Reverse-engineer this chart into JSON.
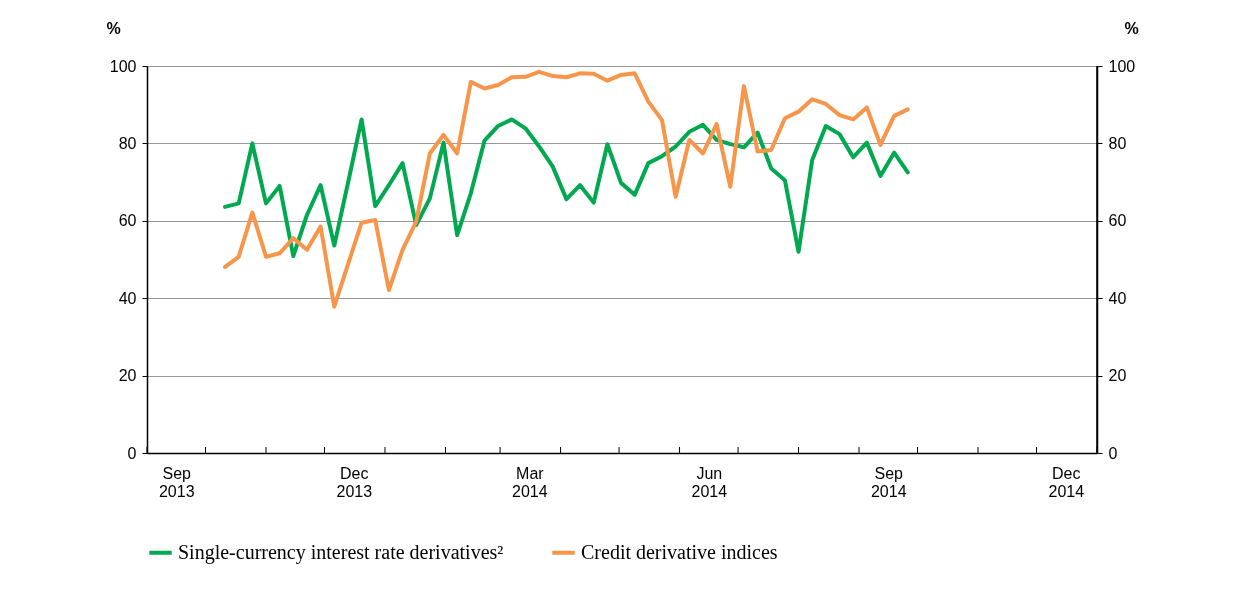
{
  "chart_data": {
    "type": "line",
    "x": [
      "2013-10-11",
      "2013-10-18",
      "2013-10-25",
      "2013-11-01",
      "2013-11-08",
      "2013-11-15",
      "2013-11-22",
      "2013-11-29",
      "2013-12-06",
      "2013-12-13",
      "2013-12-20",
      "2013-12-27",
      "2014-01-03",
      "2014-01-10",
      "2014-01-17",
      "2014-01-24",
      "2014-01-31",
      "2014-02-07",
      "2014-02-14",
      "2014-02-21",
      "2014-02-28",
      "2014-03-07",
      "2014-03-14",
      "2014-03-21",
      "2014-03-28",
      "2014-04-04",
      "2014-04-11",
      "2014-04-18",
      "2014-04-25",
      "2014-05-02",
      "2014-05-09",
      "2014-05-16",
      "2014-05-23",
      "2014-05-30",
      "2014-06-06",
      "2014-06-13",
      "2014-06-20",
      "2014-06-27",
      "2014-07-04",
      "2014-07-11",
      "2014-07-18",
      "2014-07-25",
      "2014-08-01",
      "2014-08-08",
      "2014-08-15",
      "2014-08-22",
      "2014-08-29",
      "2014-09-05",
      "2014-09-12",
      "2014-09-19",
      "2014-09-26"
    ],
    "series": [
      {
        "name": "Single-currency interest rate derivatives²",
        "color": "#00a94f",
        "values": [
          63.6,
          64.5,
          80.0,
          64.5,
          69.0,
          50.9,
          61.5,
          69.2,
          53.6,
          69.7,
          86.2,
          63.8,
          69.2,
          74.9,
          58.9,
          65.8,
          80.2,
          56.3,
          67.1,
          80.7,
          84.5,
          86.2,
          83.9,
          79.2,
          74.0,
          65.6,
          69.2,
          64.7,
          79.8,
          69.8,
          66.7,
          74.9,
          76.7,
          79.2,
          83.0,
          84.8,
          80.9,
          79.8,
          79.0,
          82.8,
          73.5,
          70.5,
          52.0,
          75.7,
          84.5,
          82.4,
          76.4,
          80.2,
          71.6,
          77.6,
          72.5
        ]
      },
      {
        "name": "Credit derivative indices",
        "color": "#f7964a",
        "values": [
          48.1,
          50.7,
          62.1,
          50.7,
          51.6,
          55.5,
          52.5,
          58.5,
          37.8,
          48.7,
          59.5,
          60.2,
          42.1,
          52.5,
          59.8,
          77.4,
          82.2,
          77.4,
          95.9,
          94.2,
          95.1,
          97.1,
          97.2,
          98.5,
          97.4,
          97.1,
          98.1,
          98.0,
          96.2,
          97.7,
          98.1,
          90.8,
          86.0,
          66.2,
          80.9,
          77.4,
          85.0,
          68.8,
          94.8,
          77.9,
          78.3,
          86.5,
          88.2,
          91.4,
          90.2,
          87.3,
          86.2,
          89.3,
          79.6,
          87.1,
          88.8
        ]
      }
    ],
    "xlim": [
      "2013-09-01",
      "2015-01-01"
    ],
    "xticks": [
      {
        "value": "2013-09-01",
        "label": null
      },
      {
        "value": "2013-09-16",
        "label": "Sep 2013"
      },
      {
        "value": "2013-10-01",
        "label": null
      },
      {
        "value": "2013-11-01",
        "label": null
      },
      {
        "value": "2013-12-01",
        "label": null
      },
      {
        "value": "2013-12-16",
        "label": "Dec 2013"
      },
      {
        "value": "2014-01-01",
        "label": null
      },
      {
        "value": "2014-02-01",
        "label": null
      },
      {
        "value": "2014-03-01",
        "label": null
      },
      {
        "value": "2014-03-16",
        "label": "Mar 2014"
      },
      {
        "value": "2014-04-01",
        "label": null
      },
      {
        "value": "2014-05-01",
        "label": null
      },
      {
        "value": "2014-06-01",
        "label": null
      },
      {
        "value": "2014-06-16",
        "label": "Jun 2014"
      },
      {
        "value": "2014-07-01",
        "label": null
      },
      {
        "value": "2014-08-01",
        "label": null
      },
      {
        "value": "2014-09-01",
        "label": null
      },
      {
        "value": "2014-09-16",
        "label": "Sep 2014"
      },
      {
        "value": "2014-10-01",
        "label": null
      },
      {
        "value": "2014-11-01",
        "label": null
      },
      {
        "value": "2014-12-01",
        "label": null
      },
      {
        "value": "2014-12-16",
        "label": "Dec 2014"
      },
      {
        "value": "2015-01-01",
        "label": null
      }
    ],
    "ylim": [
      0,
      100
    ],
    "yticks": [
      0,
      20,
      40,
      60,
      80,
      100
    ],
    "y2lim": [
      0,
      100
    ],
    "y2ticks": [
      0,
      20,
      40,
      60,
      80,
      100
    ],
    "ylabel": "%",
    "y2label": "%",
    "grid": "y",
    "legend": "bottom",
    "line_style": "solid",
    "marker": "none"
  }
}
